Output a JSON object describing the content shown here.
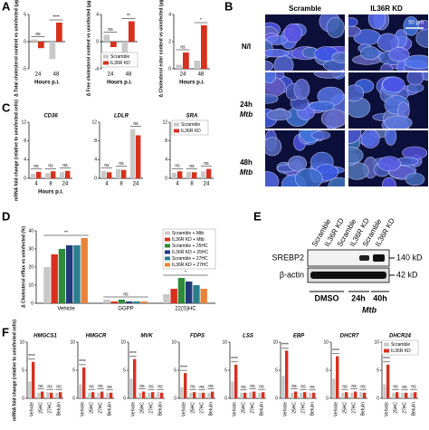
{
  "panel_labels": [
    "A",
    "B",
    "C",
    "D",
    "E",
    "F"
  ],
  "microscopy": {
    "columns": [
      "Scramble",
      "IL36R KD"
    ],
    "rows": [
      [
        "N/I"
      ],
      [
        "24h",
        "Mtb"
      ],
      [
        "48h",
        "Mtb"
      ]
    ],
    "scale_bar": "50 μm"
  },
  "blot": {
    "lanes": [
      "Scramble",
      "IL36R KD",
      "Scramble",
      "IL36R KD",
      "Scramble",
      "IL36R KD"
    ],
    "proteins": [
      "SREBP2",
      "β-actin"
    ],
    "markers": [
      "140 kD",
      "42 kD"
    ],
    "groups": [
      "DMSO",
      "24h",
      "40h"
    ],
    "treatment": "Mtb"
  },
  "chart_data": [
    {
      "type": "bar",
      "ylabel": "Δ Total cholesterol content vs uninfected (μg mL⁻¹)",
      "xlabel": "Hours p.i.",
      "categories": [
        "24",
        "48"
      ],
      "series": [
        {
          "name": "Scramble",
          "color": "#c8c8c8",
          "values": [
            0.4,
            -3.2
          ]
        },
        {
          "name": "IL36R KD",
          "color": "#d7301f",
          "values": [
            -1.2,
            3.5
          ]
        }
      ],
      "ylim": [
        -5,
        5
      ],
      "yticks": [
        -5,
        0,
        5
      ],
      "significance": [
        "ns",
        "****"
      ]
    },
    {
      "type": "bar",
      "ylabel": "Δ Free cholesterol content vs uninfected (μg mL⁻¹)",
      "xlabel": "Hours p.i.",
      "categories": [
        "24",
        "48"
      ],
      "series": [
        {
          "name": "Scramble",
          "color": "#c8c8c8",
          "values": [
            1.0,
            -2.5
          ]
        },
        {
          "name": "IL36R KD",
          "color": "#d7301f",
          "values": [
            -0.8,
            3.0
          ]
        }
      ],
      "ylim": [
        -4,
        4
      ],
      "yticks": [
        -4,
        0,
        4
      ],
      "significance": [
        "ns",
        "**"
      ],
      "legend": "lower right"
    },
    {
      "type": "bar",
      "ylabel": "Δ Cholesterol ester content vs uninfected (μg mL⁻¹)",
      "xlabel": "Hours p.i.",
      "categories": [
        "24",
        "48"
      ],
      "series": [
        {
          "name": "Scramble",
          "color": "#c8c8c8",
          "values": [
            0.3,
            0.6
          ]
        },
        {
          "name": "IL36R KD",
          "color": "#d7301f",
          "values": [
            1.2,
            3.2
          ]
        }
      ],
      "ylim": [
        0,
        4
      ],
      "yticks": [
        0,
        2,
        4
      ],
      "significance": [
        "ns",
        "*"
      ]
    },
    {
      "type": "bar",
      "title": "CD36",
      "ylabel": "mRNA fold change (relative to uninfected cells)",
      "xlabel": "Hours p.i.",
      "categories": [
        "4",
        "8",
        "24"
      ],
      "series": [
        {
          "name": "Scramble",
          "color": "#c8c8c8",
          "values": [
            1.0,
            1.1,
            1.3
          ]
        },
        {
          "name": "IL36R KD",
          "color": "#d7301f",
          "values": [
            1.4,
            1.5,
            1.6
          ]
        }
      ],
      "ylim": [
        0,
        12
      ],
      "yticks": [
        0,
        4,
        8,
        12
      ],
      "significance": [
        "ns",
        "ns",
        "ns"
      ]
    },
    {
      "type": "bar",
      "title": "LDLR",
      "categories": [
        "4",
        "8",
        "24"
      ],
      "series": [
        {
          "name": "Scramble",
          "color": "#c8c8c8",
          "values": [
            1.6,
            2.0,
            10.5
          ]
        },
        {
          "name": "IL36R KD",
          "color": "#d7301f",
          "values": [
            1.3,
            1.8,
            9.2
          ]
        }
      ],
      "ylim": [
        0,
        12
      ],
      "yticks": [
        0,
        4,
        8,
        12
      ],
      "significance": [
        "ns",
        "ns",
        "ns"
      ]
    },
    {
      "type": "bar",
      "title": "SRA",
      "categories": [
        "4",
        "8",
        "24"
      ],
      "series": [
        {
          "name": "Scramble",
          "color": "#c8c8c8",
          "values": [
            1.2,
            1.4,
            1.5
          ]
        },
        {
          "name": "IL36R KD",
          "color": "#d7301f",
          "values": [
            1.5,
            1.3,
            2.0
          ]
        }
      ],
      "ylim": [
        0,
        12
      ],
      "yticks": [
        0,
        4,
        8,
        12
      ],
      "significance": [
        "ns",
        "ns",
        "ns"
      ],
      "legend": "upper left"
    },
    {
      "type": "bar",
      "ylabel": "Δ Cholesterol efflux vs uninfected (%)",
      "categories": [
        "Vehicle",
        "GGPP",
        "22(S)HC"
      ],
      "series": [
        {
          "name": "Scramble + Mtb",
          "color": "#c8c8c8",
          "values": [
            20,
            2,
            5
          ]
        },
        {
          "name": "IL36R KD + Mtb",
          "color": "#d7301f",
          "values": [
            27,
            1,
            8
          ]
        },
        {
          "name": "Scramble + 25HC",
          "color": "#2e8b3a",
          "values": [
            30,
            2,
            14
          ]
        },
        {
          "name": "IL36R KD + 25HC",
          "color": "#1f3a7a",
          "values": [
            32,
            1,
            12
          ]
        },
        {
          "name": "Scramble + 27HC",
          "color": "#2a7f8f",
          "values": [
            32,
            1,
            10
          ]
        },
        {
          "name": "IL36R KD + 27HC",
          "color": "#e8843a",
          "values": [
            36,
            1,
            8
          ]
        }
      ],
      "ylim": [
        0,
        40
      ],
      "yticks": [
        0,
        10,
        20,
        30,
        40
      ],
      "significance": [
        "**",
        "ns",
        "*"
      ],
      "legend": "upper right"
    },
    {
      "type": "bar",
      "title": "HMGCS1",
      "ylabel": "mRNA fold change (relative to uninfected cells)",
      "categories": [
        "Vehicle",
        "25HC",
        "27HC",
        "Betulin"
      ],
      "series": [
        {
          "name": "Scramble",
          "color": "#c8c8c8",
          "values": [
            3.0,
            1.0,
            1.1,
            1.0
          ]
        },
        {
          "name": "IL36R KD",
          "color": "#d7301f",
          "values": [
            6.5,
            1.2,
            1.0,
            1.1
          ]
        }
      ],
      "ylim": [
        0,
        10
      ],
      "yticks": [
        0,
        5,
        10
      ],
      "significance": [
        "****",
        "ns",
        "ns",
        "ns"
      ]
    },
    {
      "type": "bar",
      "title": "HMGCR",
      "categories": [
        "Vehicle",
        "25HC",
        "27HC",
        "Betulin"
      ],
      "series": [
        {
          "name": "Scramble",
          "color": "#c8c8c8",
          "values": [
            2.5,
            1.0,
            1.0,
            1.0
          ]
        },
        {
          "name": "IL36R KD",
          "color": "#d7301f",
          "values": [
            5.5,
            1.1,
            1.2,
            1.0
          ]
        }
      ],
      "ylim": [
        0,
        10
      ],
      "yticks": [
        0,
        5,
        10
      ],
      "significance": [
        "****",
        "ns",
        "ns",
        "ns"
      ]
    },
    {
      "type": "bar",
      "title": "MVK",
      "categories": [
        "Vehicle",
        "25HC",
        "27HC",
        "Betulin"
      ],
      "series": [
        {
          "name": "Scramble",
          "color": "#c8c8c8",
          "values": [
            3.5,
            1.0,
            1.0,
            1.1
          ]
        },
        {
          "name": "IL36R KD",
          "color": "#d7301f",
          "values": [
            7.0,
            1.2,
            1.1,
            1.0
          ]
        }
      ],
      "ylim": [
        0,
        10
      ],
      "yticks": [
        0,
        5,
        10
      ],
      "significance": [
        "****",
        "ns",
        "ns",
        "ns"
      ]
    },
    {
      "type": "bar",
      "title": "FDPS",
      "categories": [
        "Vehicle",
        "25HC",
        "27HC",
        "Betulin"
      ],
      "series": [
        {
          "name": "Scramble",
          "color": "#c8c8c8",
          "values": [
            2.0,
            1.0,
            1.0,
            1.0
          ]
        },
        {
          "name": "IL36R KD",
          "color": "#d7301f",
          "values": [
            4.5,
            1.1,
            1.0,
            1.2
          ]
        }
      ],
      "ylim": [
        0,
        10
      ],
      "yticks": [
        0,
        5,
        10
      ],
      "significance": [
        "****",
        "ns",
        "ns",
        "ns"
      ]
    },
    {
      "type": "bar",
      "title": "LSS",
      "categories": [
        "Vehicle",
        "25HC",
        "27HC",
        "Betulin"
      ],
      "series": [
        {
          "name": "Scramble",
          "color": "#c8c8c8",
          "values": [
            3.0,
            1.0,
            1.1,
            1.0
          ]
        },
        {
          "name": "IL36R KD",
          "color": "#d7301f",
          "values": [
            6.0,
            1.0,
            1.2,
            1.1
          ]
        }
      ],
      "ylim": [
        0,
        10
      ],
      "yticks": [
        0,
        5,
        10
      ],
      "significance": [
        "****",
        "ns",
        "ns",
        "ns"
      ]
    },
    {
      "type": "bar",
      "title": "EBP",
      "categories": [
        "Vehicle",
        "25HC",
        "27HC",
        "Betulin"
      ],
      "series": [
        {
          "name": "Scramble",
          "color": "#c8c8c8",
          "values": [
            4.0,
            1.0,
            1.0,
            1.0
          ]
        },
        {
          "name": "IL36R KD",
          "color": "#d7301f",
          "values": [
            8.5,
            1.2,
            1.1,
            1.0
          ]
        }
      ],
      "ylim": [
        0,
        10
      ],
      "yticks": [
        0,
        5,
        10
      ],
      "significance": [
        "****",
        "ns",
        "ns",
        "ns"
      ]
    },
    {
      "type": "bar",
      "title": "DHCR7",
      "categories": [
        "Vehicle",
        "25HC",
        "27HC",
        "Betulin"
      ],
      "series": [
        {
          "name": "Scramble",
          "color": "#c8c8c8",
          "values": [
            3.5,
            1.0,
            1.0,
            1.1
          ]
        },
        {
          "name": "IL36R KD",
          "color": "#d7301f",
          "values": [
            7.5,
            1.1,
            1.2,
            1.0
          ]
        }
      ],
      "ylim": [
        0,
        10
      ],
      "yticks": [
        0,
        5,
        10
      ],
      "significance": [
        "****",
        "ns",
        "ns",
        "ns"
      ]
    },
    {
      "type": "bar",
      "title": "DHCR24",
      "categories": [
        "Vehicle",
        "25HC",
        "27HC",
        "Betulin"
      ],
      "series": [
        {
          "name": "Scramble",
          "color": "#c8c8c8",
          "values": [
            2.5,
            1.0,
            1.0,
            1.0
          ]
        },
        {
          "name": "IL36R KD",
          "color": "#d7301f",
          "values": [
            6.0,
            1.1,
            1.0,
            1.1
          ]
        }
      ],
      "ylim": [
        0,
        10
      ],
      "yticks": [
        0,
        5,
        10
      ],
      "significance": [
        "****",
        "ns",
        "ns",
        "ns"
      ],
      "legend": "upper right"
    }
  ]
}
